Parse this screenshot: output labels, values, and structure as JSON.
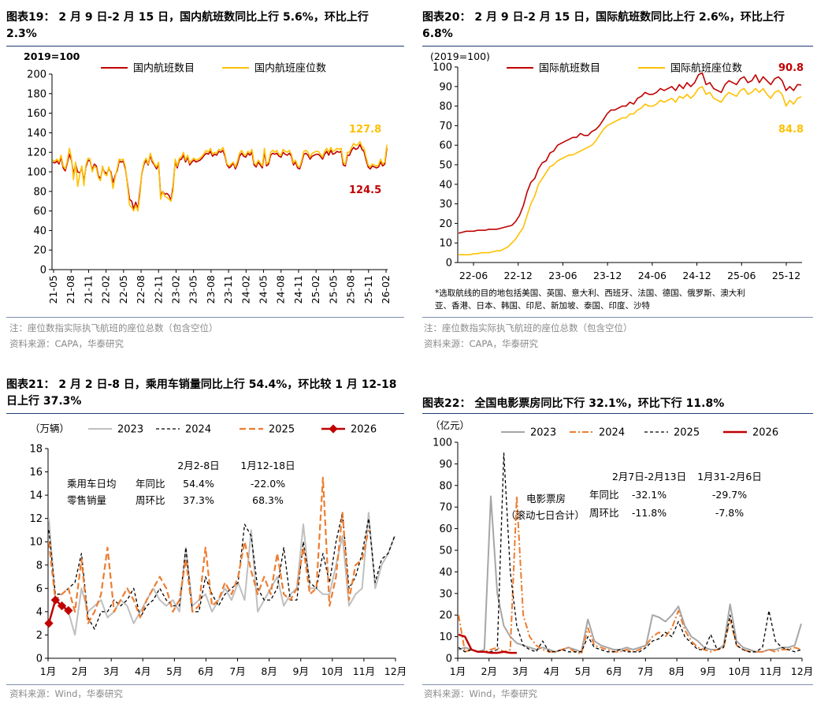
{
  "colors": {
    "dark_red": "#c00000",
    "gold": "#ffc000",
    "gray": "#bfbfbf",
    "orange": "#ed7d31",
    "black": "#000000",
    "red": "#c00000",
    "gray2": "#a6a6a6",
    "rule": "#1f3b73"
  },
  "panels": {
    "p19": {
      "title_line1": "图表19： 2 月 9 日-2 月 15 日，国内航班数同比上行 5.6%，环比上行",
      "title_line2": "2.3%",
      "note": "注：座位数指实际执飞航班的座位总数（包含空位）",
      "source": "资料来源：CAPA，华泰研究"
    },
    "p20": {
      "title_line1": "图表20： 2 月 9 日-2 月 15 日，国际航班数同比上行 2.6%，环比上行",
      "title_line2": "6.8%",
      "footnote_line1": "*选取航线的目的地包括美国、英国、意大利、西班牙、法国、德国、俄罗斯、澳大利",
      "footnote_line2": "亚、香港、日本、韩国、印尼、新加坡、泰国、印度、沙特",
      "note": "注：座位数指实际执飞航班的座位总数（包含空位）",
      "source": "资料来源：CAPA，华泰研究"
    },
    "p21": {
      "title_line1": "图表21： 2 月 2 日-8 日，乘用车销量同比上行 54.4%，环比较 1 月 12-18",
      "title_line2": "日上行 37.3%",
      "source": "资料来源：Wind，华泰研究"
    },
    "p22": {
      "title_line1": "图表22： 全国电影票房同比下行 32.1%，环比下行 11.8%",
      "source": "资料来源：Wind，华泰研究"
    }
  },
  "chart_data": [
    {
      "id": "c19",
      "type": "line",
      "unit_label": "2019=100",
      "ylim": [
        0,
        200
      ],
      "yticks": [
        0,
        20,
        40,
        60,
        80,
        100,
        120,
        140,
        160,
        180,
        200
      ],
      "xticks": [
        "21-05",
        "21-08",
        "21-11",
        "22-02",
        "22-05",
        "22-08",
        "22-11",
        "23-02",
        "23-05",
        "23-08",
        "23-11",
        "24-02",
        "24-05",
        "24-08",
        "24-11",
        "25-02",
        "25-05",
        "25-08",
        "25-11",
        "26-02"
      ],
      "series": [
        {
          "name": "国内航班数目",
          "color": "#c00000",
          "end_label": "124.5",
          "values": [
            110,
            109,
            111,
            108,
            115,
            104,
            101,
            109,
            118,
            112,
            98,
            108,
            100,
            99,
            104,
            90,
            105,
            112,
            111,
            102,
            108,
            106,
            96,
            93,
            104,
            100,
            98,
            103,
            100,
            89,
            96,
            101,
            111,
            110,
            111,
            103,
            88,
            72,
            70,
            62,
            69,
            62,
            80,
            99,
            108,
            112,
            107,
            117,
            110,
            107,
            103,
            108,
            76,
            80,
            77,
            78,
            76,
            71,
            85,
            111,
            104,
            112,
            113,
            117,
            110,
            115,
            107,
            110,
            112,
            110,
            111,
            112,
            114,
            117,
            119,
            118,
            121,
            116,
            118,
            117,
            121,
            120,
            122,
            116,
            107,
            104,
            106,
            109,
            103,
            108,
            116,
            119,
            116,
            115,
            119,
            117,
            120,
            107,
            105,
            110,
            107,
            104,
            121,
            106,
            108,
            117,
            119,
            118,
            119,
            116,
            115,
            120,
            118,
            117,
            119,
            116,
            107,
            110,
            104,
            103,
            110,
            118,
            119,
            117,
            113,
            116,
            117,
            118,
            118,
            116,
            113,
            118,
            121,
            117,
            122,
            118,
            119,
            121,
            120,
            121,
            107,
            106,
            117,
            117,
            122,
            125,
            123,
            124,
            128,
            123,
            121,
            112,
            105,
            103,
            106,
            105,
            104,
            105,
            110,
            106,
            108,
            124.5
          ]
        },
        {
          "name": "国内航班座位数",
          "color": "#ffc000",
          "end_label": "127.8",
          "values": [
            112,
            111,
            113,
            110,
            117,
            106,
            103,
            111,
            124,
            114,
            92,
            110,
            85,
            97,
            106,
            86,
            107,
            114,
            113,
            100,
            106,
            104,
            94,
            91,
            106,
            98,
            96,
            105,
            98,
            83,
            94,
            103,
            113,
            112,
            113,
            105,
            86,
            66,
            64,
            60,
            66,
            60,
            76,
            100,
            110,
            114,
            108,
            119,
            112,
            108,
            105,
            110,
            72,
            80,
            75,
            74,
            72,
            70,
            81,
            113,
            106,
            114,
            115,
            120,
            112,
            117,
            109,
            112,
            114,
            112,
            113,
            114,
            116,
            119,
            122,
            120,
            124,
            118,
            120,
            119,
            123,
            122,
            125,
            118,
            108,
            106,
            108,
            110,
            105,
            111,
            119,
            122,
            118,
            117,
            121,
            119,
            123,
            109,
            107,
            112,
            109,
            106,
            124,
            108,
            110,
            120,
            122,
            120,
            122,
            118,
            117,
            123,
            121,
            120,
            122,
            118,
            109,
            112,
            106,
            105,
            112,
            121,
            122,
            120,
            115,
            119,
            120,
            121,
            121,
            118,
            115,
            121,
            124,
            120,
            125,
            121,
            122,
            124,
            123,
            124,
            110,
            108,
            120,
            120,
            125,
            129,
            127,
            128,
            131,
            126,
            124,
            115,
            107,
            105,
            108,
            107,
            106,
            107,
            113,
            108,
            110,
            127.8
          ]
        }
      ]
    },
    {
      "id": "c20",
      "type": "line",
      "unit_label": "(2019=100)",
      "ylim": [
        0,
        100
      ],
      "yticks": [
        0,
        10,
        20,
        30,
        40,
        50,
        60,
        70,
        80,
        90,
        100
      ],
      "xticks": [
        "22-06",
        "22-12",
        "23-06",
        "23-12",
        "24-06",
        "24-12",
        "25-06",
        "25-12"
      ],
      "series": [
        {
          "name": "国际航班数目",
          "color": "#c00000",
          "end_label": "90.8",
          "values": [
            15,
            15.5,
            16,
            16,
            16,
            16.5,
            16.5,
            16.5,
            17,
            17,
            17,
            17.5,
            18,
            18.5,
            19,
            21,
            24,
            29,
            36,
            41,
            43,
            48,
            51,
            52,
            56,
            57,
            60,
            61,
            62,
            63,
            64,
            64,
            66,
            65,
            65,
            67,
            68,
            70,
            73,
            76,
            78,
            78,
            79,
            80,
            80,
            82,
            81,
            84,
            85,
            87,
            86,
            86,
            87,
            89,
            88,
            89,
            90,
            88,
            91,
            89,
            92,
            90,
            92,
            96,
            97,
            91,
            92,
            89,
            88,
            87,
            91,
            93,
            92,
            91,
            94,
            95,
            92,
            93,
            96,
            92,
            95,
            93,
            91,
            94,
            95,
            93,
            88,
            90,
            88,
            91,
            90.8
          ]
        },
        {
          "name": "国际航班座位数",
          "color": "#ffc000",
          "end_label": "84.8",
          "values": [
            4,
            4,
            4,
            4,
            4.5,
            4.5,
            5,
            5,
            5,
            5.5,
            6,
            6,
            7,
            8,
            10,
            12,
            15,
            18,
            24,
            30,
            34,
            40,
            43,
            46,
            49,
            50,
            52,
            53,
            54,
            55,
            55,
            56,
            57,
            58,
            59,
            60,
            62,
            65,
            68,
            70,
            71,
            72,
            73,
            74,
            74,
            76,
            76,
            78,
            79,
            81,
            80,
            80,
            81,
            83,
            82,
            83,
            84,
            82,
            85,
            84,
            86,
            84,
            86,
            89,
            90,
            86,
            87,
            84,
            83,
            82,
            85,
            87,
            86,
            85,
            88,
            89,
            86,
            87,
            89,
            87,
            89,
            86,
            84,
            87,
            88,
            86,
            80,
            83,
            81,
            84,
            84.8
          ]
        }
      ]
    },
    {
      "id": "c21",
      "type": "line",
      "unit_label": "（万辆）",
      "ylim": [
        0,
        18
      ],
      "yticks": [
        0,
        2,
        4,
        6,
        8,
        10,
        12,
        14,
        16,
        18
      ],
      "xticks": [
        "1月",
        "2月",
        "3月",
        "4月",
        "5月",
        "6月",
        "7月",
        "8月",
        "9月",
        "10月",
        "11月",
        "12月"
      ],
      "annotation": {
        "header1": "2月2-8日",
        "header2": "1月12-18日",
        "left1": "乘用车日均",
        "left2": "零售销量",
        "label_yoy": "年同比",
        "label_wow": "周环比",
        "yoy_1": "54.4%",
        "yoy_2": "-22.0%",
        "wow_1": "37.3%",
        "wow_2": "68.3%"
      },
      "series": [
        {
          "name": "2023",
          "color": "#bfbfbf",
          "dash": "",
          "width": 2,
          "values": [
            12,
            5,
            4.5,
            4,
            2,
            6,
            4,
            4.5,
            5,
            3.5,
            4,
            5,
            4.5,
            3,
            4,
            5,
            6,
            5,
            4.5,
            5,
            4,
            9.5,
            4.5,
            5,
            5.5,
            4,
            5,
            6,
            5,
            6.5,
            5,
            11,
            4,
            5,
            6,
            7,
            4.5,
            5.5,
            6,
            11.5,
            6,
            6,
            5.5,
            5.5,
            8,
            10.5,
            4.5,
            5.5,
            6,
            12.5,
            6,
            8,
            9,
            10.5
          ]
        },
        {
          "name": "2024",
          "color": "#000000",
          "dash": "4,3",
          "width": 1.3,
          "values": [
            11,
            5.5,
            5.5,
            6,
            6.5,
            9,
            3.5,
            2.5,
            4,
            4,
            5,
            4.5,
            5,
            6,
            3.5,
            4.5,
            5,
            6,
            5,
            4.5,
            4.5,
            9.5,
            4,
            4,
            7,
            5.5,
            4.5,
            5.5,
            6,
            6.5,
            11.5,
            10.5,
            6,
            5,
            5,
            6,
            9.5,
            5,
            5,
            10,
            6.5,
            6,
            9,
            6.5,
            10,
            12.5,
            6,
            7,
            9,
            12,
            6.5,
            8.5,
            9,
            10.5
          ]
        },
        {
          "name": "2025",
          "color": "#ed7d31",
          "dash": "8,4",
          "width": 2.2,
          "values": [
            10,
            5,
            5.5,
            6,
            4,
            8.5,
            3,
            4,
            5.5,
            9.5,
            4,
            5,
            6,
            5,
            3.5,
            5,
            6,
            7,
            6,
            4,
            5,
            8.5,
            4,
            4.5,
            9.5,
            4.5,
            5,
            6.5,
            5.5,
            7,
            10,
            7.5,
            5.5,
            7,
            5.5,
            9,
            5.5,
            5,
            6,
            9.5,
            5.5,
            6,
            15.5,
            4.5,
            7,
            12.5,
            5,
            8,
            8.5,
            11
          ]
        },
        {
          "name": "2026",
          "color": "#c00000",
          "dash": "",
          "width": 2.5,
          "markers": true,
          "values": [
            3,
            5,
            4.5,
            4.1
          ]
        }
      ]
    },
    {
      "id": "c22",
      "type": "line",
      "unit_label": "（亿元）",
      "ylim": [
        0,
        100
      ],
      "yticks": [
        0,
        10,
        20,
        30,
        40,
        50,
        60,
        70,
        80,
        90,
        100
      ],
      "xticks": [
        "1月",
        "2月",
        "3月",
        "4月",
        "5月",
        "6月",
        "7月",
        "8月",
        "9月",
        "10月",
        "11月",
        "12月"
      ],
      "annotation": {
        "header1": "2月7日-2月13日",
        "header2": "1月31-2月6日",
        "left1": "电影票房",
        "left2": "（滚动七日合计）",
        "label_yoy": "年同比",
        "label_wow": "周环比",
        "yoy_1": "-32.1%",
        "yoy_2": "-29.7%",
        "wow_1": "-11.8%",
        "wow_2": "-7.8%"
      },
      "series": [
        {
          "name": "2023",
          "color": "#a6a6a6",
          "dash": "",
          "width": 2,
          "values": [
            4,
            5,
            4,
            3,
            4,
            75,
            30,
            15,
            10,
            7,
            6,
            5,
            4,
            5,
            4,
            3,
            4,
            5,
            4,
            3,
            18,
            8,
            6,
            5,
            4,
            4,
            5,
            4,
            5,
            6,
            20,
            19,
            17,
            20,
            24,
            15,
            10,
            8,
            5,
            4,
            4,
            6,
            25,
            8,
            5,
            4,
            3,
            3,
            4,
            4,
            5,
            5,
            6,
            16
          ]
        },
        {
          "name": "2024",
          "color": "#ed7d31",
          "dash": "8,3,2,3",
          "width": 2,
          "values": [
            20,
            3,
            4,
            3,
            3,
            4,
            5,
            3,
            4,
            75,
            20,
            10,
            6,
            4,
            3,
            3,
            4,
            5,
            3,
            2,
            14,
            6,
            5,
            4,
            3,
            3,
            4,
            3,
            4,
            6,
            10,
            12,
            10,
            14,
            22,
            13,
            8,
            5,
            4,
            3,
            4,
            5,
            18,
            6,
            4,
            3,
            3,
            3,
            4,
            3,
            4,
            4,
            5,
            4
          ]
        },
        {
          "name": "2025",
          "color": "#000000",
          "dash": "4,3",
          "width": 1.3,
          "values": [
            5,
            3,
            4,
            3,
            3,
            3,
            4,
            95,
            40,
            15,
            6,
            4,
            3,
            8,
            3,
            3,
            4,
            3,
            3,
            3,
            10,
            5,
            4,
            3,
            3,
            4,
            3,
            3,
            3,
            5,
            8,
            9,
            12,
            10,
            17,
            10,
            7,
            4,
            4,
            11,
            4,
            5,
            20,
            6,
            4,
            3,
            3,
            5,
            22,
            8,
            5,
            4,
            3,
            4
          ]
        },
        {
          "name": "2026",
          "color": "#c00000",
          "dash": "",
          "width": 2.5,
          "values": [
            11,
            10,
            4,
            3,
            3,
            2.5,
            2.5,
            3,
            2.5,
            2.5
          ]
        }
      ]
    }
  ]
}
